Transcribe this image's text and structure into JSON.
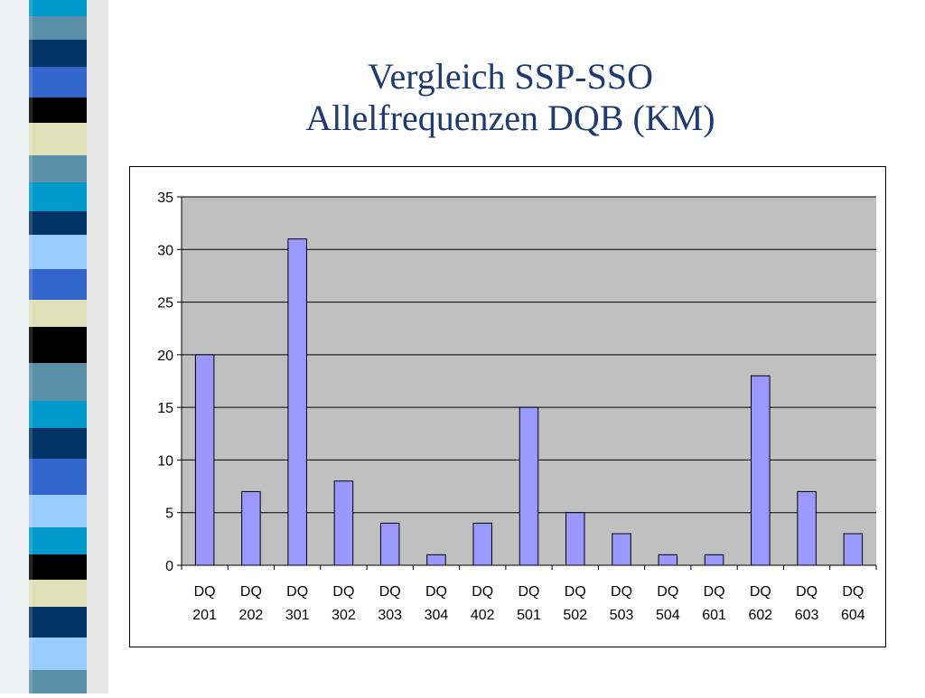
{
  "slide": {
    "title_line1": "Vergleich SSP-SSO",
    "title_line2": "Allelfrequenzen DQB (KM)"
  },
  "colors": {
    "title": "#1f3a6e",
    "plot_background": "#c0c0c0",
    "bar_fill": "#9999ff",
    "bar_stroke": "#000000",
    "gridline": "#000000",
    "stripe_palette": [
      "#0099cc",
      "#5a8fa8",
      "#003366",
      "#3366cc",
      "#000000",
      "#e0e0b8",
      "#99ccff"
    ]
  },
  "chart_data": {
    "type": "bar",
    "title": "",
    "xlabel": "",
    "ylabel": "",
    "ylim": [
      0,
      35
    ],
    "yticks": [
      0,
      5,
      10,
      15,
      20,
      25,
      30,
      35
    ],
    "grid": true,
    "legend": "none",
    "categories": [
      [
        "DQ",
        "201"
      ],
      [
        "DQ",
        "202"
      ],
      [
        "DQ",
        "301"
      ],
      [
        "DQ",
        "302"
      ],
      [
        "DQ",
        "303"
      ],
      [
        "DQ",
        "304"
      ],
      [
        "DQ",
        "402"
      ],
      [
        "DQ",
        "501"
      ],
      [
        "DQ",
        "502"
      ],
      [
        "DQ",
        "503"
      ],
      [
        "DQ",
        "504"
      ],
      [
        "DQ",
        "601"
      ],
      [
        "DQ",
        "602"
      ],
      [
        "DQ",
        "603"
      ],
      [
        "DQ",
        "604"
      ]
    ],
    "values": [
      20,
      7,
      31,
      8,
      4,
      1,
      4,
      15,
      5,
      3,
      1,
      1,
      18,
      7,
      3
    ]
  }
}
